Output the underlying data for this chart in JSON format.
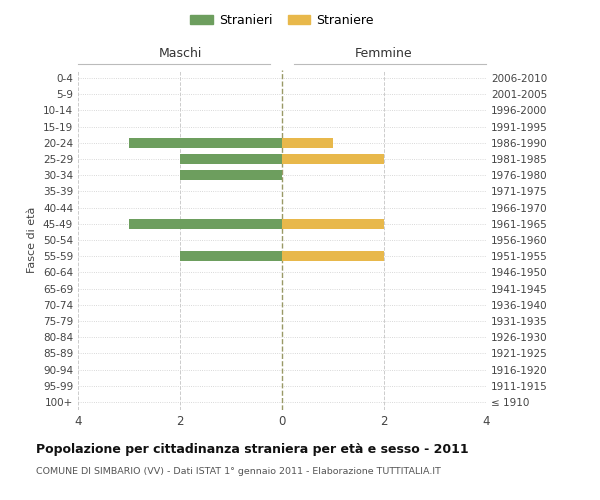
{
  "age_groups": [
    "100+",
    "95-99",
    "90-94",
    "85-89",
    "80-84",
    "75-79",
    "70-74",
    "65-69",
    "60-64",
    "55-59",
    "50-54",
    "45-49",
    "40-44",
    "35-39",
    "30-34",
    "25-29",
    "20-24",
    "15-19",
    "10-14",
    "5-9",
    "0-4"
  ],
  "birth_years": [
    "≤ 1910",
    "1911-1915",
    "1916-1920",
    "1921-1925",
    "1926-1930",
    "1931-1935",
    "1936-1940",
    "1941-1945",
    "1946-1950",
    "1951-1955",
    "1956-1960",
    "1961-1965",
    "1966-1970",
    "1971-1975",
    "1976-1980",
    "1981-1985",
    "1986-1990",
    "1991-1995",
    "1996-2000",
    "2001-2005",
    "2006-2010"
  ],
  "maschi": [
    0,
    0,
    0,
    0,
    0,
    0,
    0,
    0,
    0,
    -2,
    0,
    -3,
    0,
    0,
    -2,
    -2,
    -3,
    0,
    0,
    0,
    0
  ],
  "femmine": [
    0,
    0,
    0,
    0,
    0,
    0,
    0,
    0,
    0,
    2,
    0,
    2,
    0,
    0,
    0,
    2,
    1,
    0,
    0,
    0,
    0
  ],
  "color_maschi": "#6d9e5e",
  "color_femmine": "#e8b84b",
  "title_main": "Popolazione per cittadinanza straniera per età e sesso - 2011",
  "title_sub": "COMUNE DI SIMBARIO (VV) - Dati ISTAT 1° gennaio 2011 - Elaborazione TUTTITALIA.IT",
  "xlabel_left": "Maschi",
  "xlabel_right": "Femmine",
  "ylabel_left": "Fasce di età",
  "legend_maschi": "Stranieri",
  "legend_femmine": "Straniere",
  "xlim": [
    -4,
    4
  ],
  "xticks": [
    -4,
    -2,
    0,
    2,
    4
  ],
  "xticklabels": [
    "4",
    "2",
    "0",
    "2",
    "4"
  ],
  "background_color": "#ffffff",
  "grid_color": "#cccccc",
  "dashed_line_color": "#999966"
}
